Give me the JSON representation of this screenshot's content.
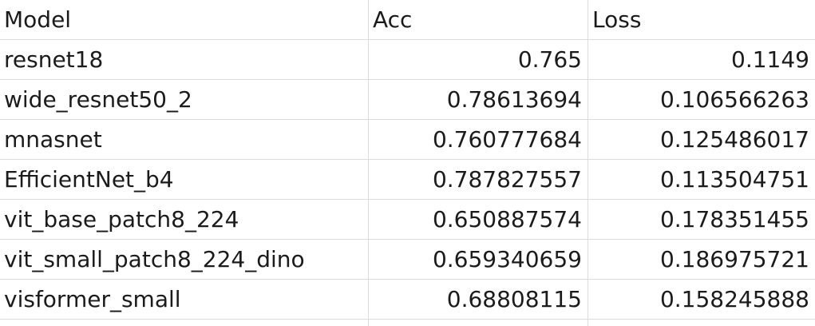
{
  "table": {
    "headers": [
      "Model",
      "Acc",
      "Loss"
    ],
    "rows": [
      {
        "model": "resnet18",
        "acc": "0.765",
        "loss": "0.1149"
      },
      {
        "model": "wide_resnet50_2",
        "acc": "0.78613694",
        "loss": "0.106566263"
      },
      {
        "model": "mnasnet",
        "acc": "0.760777684",
        "loss": "0.125486017"
      },
      {
        "model": "EfficientNet_b4",
        "acc": "0.787827557",
        "loss": "0.113504751"
      },
      {
        "model": "vit_base_patch8_224",
        "acc": "0.650887574",
        "loss": "0.178351455"
      },
      {
        "model": "vit_small_patch8_224_dino",
        "acc": "0.659340659",
        "loss": "0.186975721"
      },
      {
        "model": "visformer_small",
        "acc": "0.68808115",
        "loss": "0.158245888"
      }
    ]
  }
}
